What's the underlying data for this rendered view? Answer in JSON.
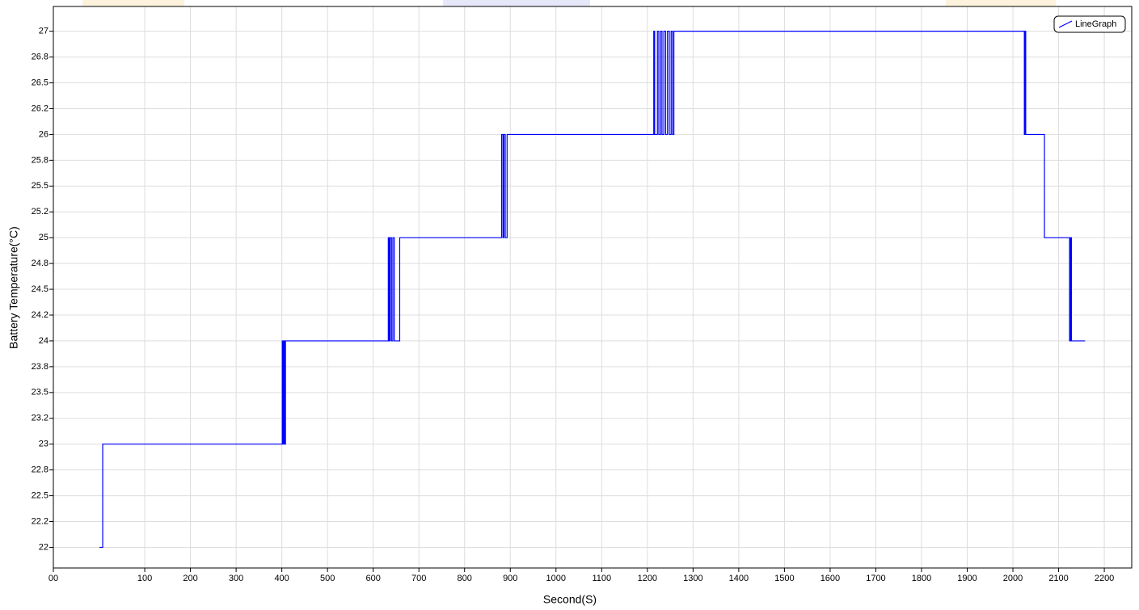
{
  "chart_data": {
    "type": "line",
    "x_label": "Second(S)",
    "y_label": "Battery Temperature(°C)",
    "xlim": [
      -100,
      2260
    ],
    "ylim": [
      21.8,
      27.24
    ],
    "xticks": [
      {
        "value": -100,
        "label": "00"
      },
      100,
      200,
      300,
      400,
      500,
      600,
      700,
      800,
      900,
      1000,
      1100,
      1200,
      1300,
      1400,
      1500,
      1600,
      1700,
      1800,
      1900,
      2000,
      2100,
      2200
    ],
    "yticks": [
      22,
      {
        "value": 22.25,
        "label": "22.2"
      },
      22.5,
      {
        "value": 22.75,
        "label": "22.8"
      },
      23,
      {
        "value": 23.25,
        "label": "23.2"
      },
      23.5,
      {
        "value": 23.75,
        "label": "23.8"
      },
      24,
      {
        "value": 24.25,
        "label": "24.2"
      },
      24.5,
      {
        "value": 24.75,
        "label": "24.8"
      },
      25,
      {
        "value": 25.25,
        "label": "25.2"
      },
      25.5,
      {
        "value": 25.75,
        "label": "25.8"
      },
      26,
      {
        "value": 26.25,
        "label": "26.2"
      },
      26.5,
      {
        "value": 26.75,
        "label": "26.8"
      },
      27
    ],
    "grid": true,
    "legend": "top-right",
    "series": [
      {
        "name": "LineGraph",
        "color": "#0000ff",
        "x": [
          1,
          8,
          8,
          401,
          401,
          402,
          402,
          404,
          404,
          406,
          406,
          408,
          408,
          633,
          633,
          635,
          635,
          637,
          637,
          640,
          640,
          643,
          643,
          646,
          646,
          658,
          658,
          881,
          881,
          884,
          884,
          886,
          886,
          889,
          889,
          893,
          893,
          1214,
          1214,
          1216,
          1216,
          1222,
          1222,
          1225,
          1225,
          1229,
          1229,
          1232,
          1232,
          1236,
          1236,
          1240,
          1240,
          1244,
          1244,
          1248,
          1248,
          1252,
          1252,
          1255,
          1255,
          1258,
          1258,
          2025,
          2025,
          2027,
          2027,
          2028,
          2028,
          2069,
          2069,
          2124,
          2124,
          2126,
          2126,
          2128,
          2128,
          2158
        ],
        "values": [
          22,
          22,
          23,
          23,
          24,
          24,
          23,
          23,
          24,
          24,
          23,
          23,
          24,
          24,
          25,
          25,
          24,
          24,
          25,
          25,
          24,
          24,
          25,
          25,
          24,
          24,
          25,
          25,
          26,
          26,
          25,
          25,
          26,
          26,
          25,
          25,
          26,
          26,
          27,
          27,
          26,
          26,
          27,
          27,
          26,
          26,
          27,
          27,
          26,
          26,
          27,
          27,
          26,
          26,
          27,
          27,
          26,
          26,
          27,
          27,
          26,
          26,
          27,
          27,
          26,
          26,
          27,
          27,
          26,
          26,
          25,
          25,
          24,
          24,
          25,
          25,
          24,
          24
        ]
      }
    ]
  }
}
